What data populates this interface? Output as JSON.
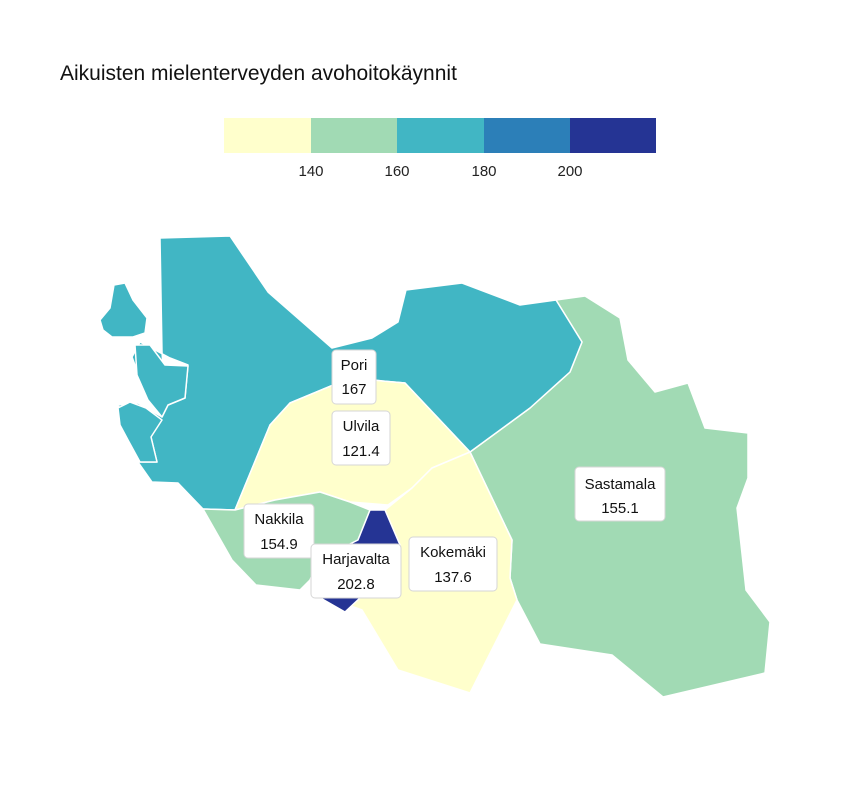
{
  "title": "Aikuisten mielenterveyden avohoitokäynnit",
  "legend": {
    "colors": [
      "#ffffcc",
      "#a1dab4",
      "#41b6c4",
      "#2c7fb8",
      "#253494"
    ],
    "ticks": [
      "140",
      "160",
      "180",
      "200"
    ]
  },
  "regions": [
    {
      "name": "Pori",
      "value": "167",
      "color": "#41b6c4"
    },
    {
      "name": "Ulvila",
      "value": "121.4",
      "color": "#ffffcc"
    },
    {
      "name": "Nakkila",
      "value": "154.9",
      "color": "#a1dab4"
    },
    {
      "name": "Harjavalta",
      "value": "202.8",
      "color": "#253494"
    },
    {
      "name": "Kokemäki",
      "value": "137.6",
      "color": "#ffffcc"
    },
    {
      "name": "Sastamala",
      "value": "155.1",
      "color": "#a1dab4"
    }
  ]
}
